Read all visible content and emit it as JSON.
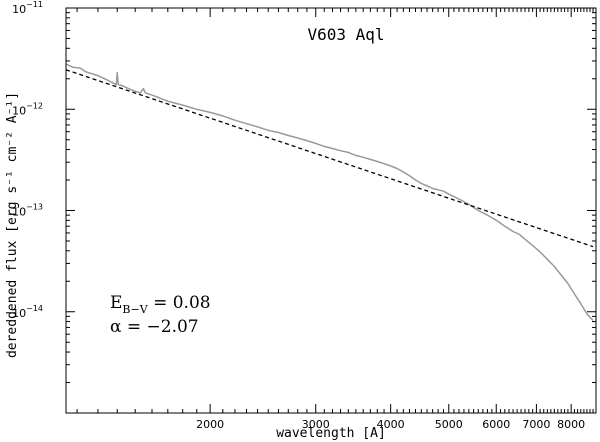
{
  "chart_data": {
    "type": "line",
    "title": "V603 Aql",
    "xlabel": "wavelength [A]",
    "ylabel": "dereddened flux [erg s⁻¹ cm⁻² A⁻¹]",
    "x_scale": "log",
    "y_scale": "log",
    "xlim": [
      1150,
      8800
    ],
    "ylim": [
      1e-15,
      1e-11
    ],
    "x_tick_labels": [
      {
        "value": 2000,
        "label": "2000"
      },
      {
        "value": 3000,
        "label": "3000"
      },
      {
        "value": 4000,
        "label": "4000"
      },
      {
        "value": 5000,
        "label": "5000"
      },
      {
        "value": 6000,
        "label": "6000"
      },
      {
        "value": 7000,
        "label": "7000"
      },
      {
        "value": 8000,
        "label": "8000"
      }
    ],
    "y_tick_labels": [
      {
        "value": 1e-11,
        "mantissa": "10",
        "exponent": "−11"
      },
      {
        "value": 1e-12,
        "mantissa": "10",
        "exponent": "−12"
      },
      {
        "value": 1e-13,
        "mantissa": "10",
        "exponent": "−13"
      },
      {
        "value": 1e-14,
        "mantissa": "10",
        "exponent": "−14"
      }
    ],
    "series": [
      {
        "style": "solid",
        "color": "#999999",
        "x": [
          1150,
          1180,
          1215,
          1240,
          1300,
          1370,
          1395,
          1400,
          1406,
          1430,
          1480,
          1530,
          1548,
          1560,
          1600,
          1700,
          1800,
          1900,
          2000,
          2100,
          2200,
          2300,
          2400,
          2500,
          2600,
          2700,
          2800,
          2900,
          3000,
          3100,
          3200,
          3300,
          3400,
          3500,
          3600,
          3700,
          3800,
          3900,
          4000,
          4100,
          4200,
          4300,
          4400,
          4500,
          4600,
          4700,
          4800,
          4900,
          5000,
          5200,
          5400,
          5600,
          5800,
          6000,
          6200,
          6400,
          6560,
          6700,
          6900,
          7100,
          7300,
          7500,
          7700,
          7900,
          8100,
          8300,
          8500,
          8700
        ],
        "y": [
          2.8e-12,
          2.6e-12,
          2.55e-12,
          2.35e-12,
          2.15e-12,
          1.85e-12,
          1.75e-12,
          2.3e-12,
          1.75e-12,
          1.7e-12,
          1.55e-12,
          1.45e-12,
          1.6e-12,
          1.45e-12,
          1.38e-12,
          1.2e-12,
          1.1e-12,
          1e-12,
          9.3e-13,
          8.6e-13,
          7.8e-13,
          7.2e-13,
          6.7e-13,
          6.2e-13,
          5.9e-13,
          5.5e-13,
          5.2e-13,
          4.9e-13,
          4.6e-13,
          4.3e-13,
          4.1e-13,
          3.9e-13,
          3.75e-13,
          3.5e-13,
          3.35e-13,
          3.2e-13,
          3.05e-13,
          2.9e-13,
          2.75e-13,
          2.6e-13,
          2.4e-13,
          2.2e-13,
          2e-13,
          1.85e-13,
          1.75e-13,
          1.65e-13,
          1.6e-13,
          1.55e-13,
          1.45e-13,
          1.3e-13,
          1.15e-13,
          1e-13,
          9e-14,
          8e-14,
          7e-14,
          6.2e-14,
          5.8e-14,
          5.2e-14,
          4.5e-14,
          3.9e-14,
          3.3e-14,
          2.8e-14,
          2.3e-14,
          1.9e-14,
          1.5e-14,
          1.2e-14,
          9.5e-15,
          8.2e-15
        ]
      },
      {
        "style": "dashed",
        "color": "#000000",
        "x": [
          1150,
          8700
        ],
        "y": [
          2.45e-12,
          4.4e-14
        ]
      }
    ],
    "annotations": {
      "ebv_symbol": "E",
      "ebv_subscript": "B−V",
      "ebv_text": " =  0.08",
      "alpha_text": "α  =  −2.07"
    }
  }
}
